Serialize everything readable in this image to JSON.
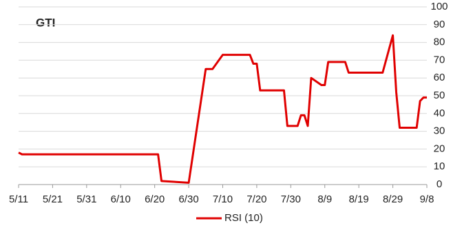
{
  "chart_data": {
    "type": "line",
    "title": "GTI",
    "x": [
      "5/11",
      "5/12",
      "6/21",
      "6/22",
      "6/30",
      "7/5",
      "7/7",
      "7/10",
      "7/18",
      "7/19",
      "7/20",
      "7/21",
      "7/28",
      "7/29",
      "8/1",
      "8/2",
      "8/3",
      "8/4",
      "8/5",
      "8/8",
      "8/9",
      "8/10",
      "8/15",
      "8/16",
      "8/26",
      "8/29",
      "8/30",
      "8/31",
      "9/5",
      "9/6",
      "9/7",
      "9/8"
    ],
    "series": [
      {
        "name": "RSI (10)",
        "color": "#e00000",
        "values": [
          18,
          17,
          17,
          2,
          1,
          65,
          65,
          73,
          73,
          68,
          68,
          53,
          53,
          33,
          33,
          39,
          39,
          33,
          60,
          56,
          56,
          69,
          69,
          63,
          63,
          84,
          52,
          32,
          32,
          47,
          49,
          49
        ]
      }
    ],
    "xlim": [
      "5/11",
      "9/8"
    ],
    "xticks": [
      "5/11",
      "5/21",
      "5/31",
      "6/10",
      "6/20",
      "6/30",
      "7/10",
      "7/20",
      "7/30",
      "8/9",
      "8/19",
      "8/29",
      "9/8"
    ],
    "ylim": [
      0,
      100
    ],
    "yticks": [
      0,
      10,
      20,
      30,
      40,
      50,
      60,
      70,
      80,
      90,
      100
    ],
    "grid": true,
    "legend": "bottom"
  }
}
